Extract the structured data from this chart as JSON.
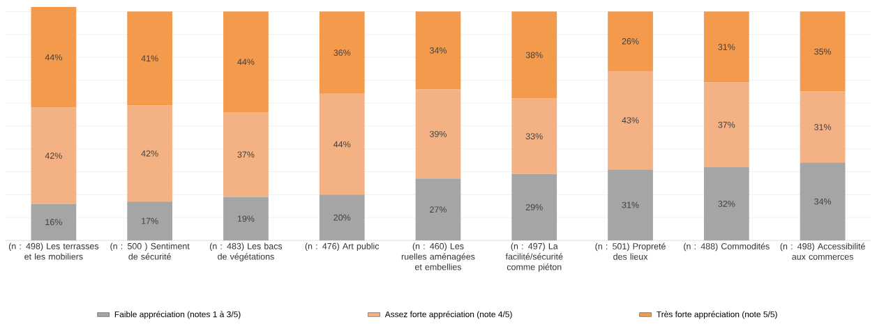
{
  "chart_data": {
    "type": "bar",
    "stacked": true,
    "categories": [
      "(n : 498) Les terrasses et les mobiliers",
      "(n : 500 ) Sentiment de sécurité",
      "(n : 483) Les bacs de végétations",
      "(n : 476) Art public",
      "(n : 460) Les ruelles aménagées et embellies",
      "(n : 497) La facilité/sécurité comme piéton",
      "(n : 501) Propreté des lieux",
      "(n : 488) Commodités",
      "(n : 498) Accessibilité aux commerces"
    ],
    "series": [
      {
        "name": "Faible appréciation (notes 1 à 3/5)",
        "color": "#a5a5a5",
        "values": [
          16,
          17,
          19,
          20,
          27,
          29,
          31,
          32,
          34
        ],
        "value_labels": [
          "16%",
          "17%",
          "19%",
          "20%",
          "27%",
          "29%",
          "31%",
          "32%",
          "34%"
        ]
      },
      {
        "name": "Assez forte appréciation (note 4/5)",
        "color": "#f4b183",
        "values": [
          42,
          42,
          37,
          44,
          39,
          33,
          43,
          37,
          31
        ],
        "value_labels": [
          "42%",
          "42%",
          "37%",
          "44%",
          "39%",
          "33%",
          "43%",
          "37%",
          "31%"
        ]
      },
      {
        "name": "Très forte appréciation (note 5/5)",
        "color": "#f39a4c",
        "values": [
          44,
          41,
          44,
          36,
          34,
          38,
          26,
          31,
          35
        ],
        "value_labels": [
          "44%",
          "41%",
          "44%",
          "36%",
          "34%",
          "38%",
          "26%",
          "31%",
          "35%"
        ]
      }
    ],
    "ylim": [
      0,
      102
    ],
    "yticks": [
      {
        "value": 0,
        "label": null
      },
      {
        "value": 10,
        "label": null
      },
      {
        "value": 20,
        "label": null
      },
      {
        "value": 30,
        "label": null
      },
      {
        "value": 40,
        "label": null
      },
      {
        "value": 50,
        "label": null
      },
      {
        "value": 60,
        "label": null
      },
      {
        "value": 70,
        "label": null
      },
      {
        "value": 80,
        "label": null
      },
      {
        "value": 90,
        "label": null
      },
      {
        "value": 100,
        "label": null
      }
    ],
    "grid": "y",
    "legend": "bottom",
    "tick_labels": "x"
  }
}
